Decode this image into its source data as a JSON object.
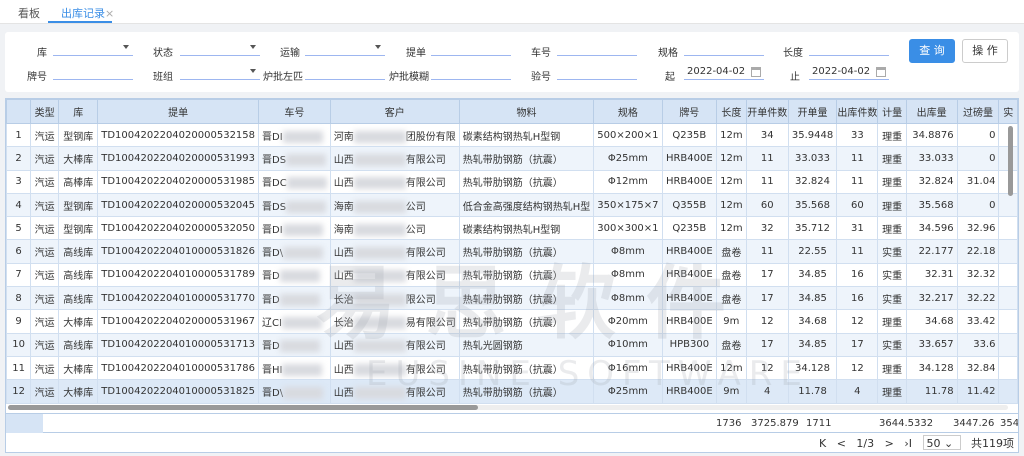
{
  "tabs": [
    {
      "label": "看板"
    },
    {
      "label": "出库记录",
      "close": "×"
    }
  ],
  "filters": {
    "ku": "库",
    "zhuangtai": "状态",
    "yunshu": "运输",
    "tidan": "提单",
    "chehao": "车号",
    "guige": "规格",
    "changdu": "长度",
    "paihao": "牌号",
    "banzu": "班组",
    "lupi_zuopi": "炉批左匹",
    "lupi_mohu": "炉批模糊",
    "yanhao": "验号",
    "qi": "起",
    "qi_value": "2022-04-02",
    "zhi": "止",
    "zhi_value": "2022-04-02"
  },
  "buttons": {
    "query": "查 询",
    "operate": "操 作"
  },
  "accent": "#3a8ee6",
  "columns": [
    "",
    "类型",
    "库",
    "提单",
    "车号",
    "客户",
    "物料",
    "规格",
    "牌号",
    "长度",
    "开单件数",
    "开单量",
    "出库件数",
    "计量",
    "出库量",
    "过磅量",
    "实"
  ],
  "rows": [
    [
      "1",
      "汽运",
      "型钢库",
      "TD1004202204020000532158",
      "晋DI",
      "河南",
      "团股份有限",
      "碳素结构钢热轧H型钢",
      "500×200×1",
      "Q235B",
      "12m",
      "34",
      "35.9448",
      "33",
      "理重",
      "34.8876",
      "0"
    ],
    [
      "2",
      "汽运",
      "大棒库",
      "TD1004202204020000531993",
      "晋DS",
      "山西",
      "有限公司",
      "热轧带肋钢筋（抗震）",
      "Φ25mm",
      "HRB400E",
      "12m",
      "11",
      "33.033",
      "11",
      "理重",
      "33.033",
      "0"
    ],
    [
      "3",
      "汽运",
      "高棒库",
      "TD1004202204020000531985",
      "晋DC",
      "山西",
      "有限公司",
      "热轧带肋钢筋（抗震）",
      "Φ12mm",
      "HRB400E",
      "12m",
      "11",
      "32.824",
      "11",
      "理重",
      "32.824",
      "31.04"
    ],
    [
      "4",
      "汽运",
      "型钢库",
      "TD1004202204020000532045",
      "晋DS",
      "海南",
      "公司",
      "低合金高强度结构钢热轧H型",
      "350×175×7",
      "Q355B",
      "12m",
      "60",
      "35.568",
      "60",
      "理重",
      "35.568",
      "0"
    ],
    [
      "5",
      "汽运",
      "型钢库",
      "TD1004202204020000532050",
      "晋DI",
      "海南",
      "公司",
      "碳素结构钢热轧H型钢",
      "300×300×1",
      "Q235B",
      "12m",
      "32",
      "35.712",
      "31",
      "理重",
      "34.596",
      "32.96"
    ],
    [
      "6",
      "汽运",
      "高线库",
      "TD1004202204010000531826",
      "晋D\\",
      "山西",
      "有限公司",
      "热轧带肋钢筋（抗震）",
      "Φ8mm",
      "HRB400E",
      "盘卷",
      "11",
      "22.55",
      "11",
      "实重",
      "22.177",
      "22.18"
    ],
    [
      "7",
      "汽运",
      "高线库",
      "TD1004202204010000531789",
      "晋D",
      "山西",
      "有限公司",
      "热轧带肋钢筋（抗震）",
      "Φ8mm",
      "HRB400E",
      "盘卷",
      "17",
      "34.85",
      "16",
      "实重",
      "32.31",
      "32.32"
    ],
    [
      "8",
      "汽运",
      "高线库",
      "TD1004202204010000531770",
      "晋D",
      "长治",
      "限公司",
      "热轧带肋钢筋（抗震）",
      "Φ8mm",
      "HRB400E",
      "盘卷",
      "17",
      "34.85",
      "16",
      "实重",
      "32.217",
      "32.22"
    ],
    [
      "9",
      "汽运",
      "大棒库",
      "TD1004202204020000531967",
      "辽CI",
      "长治",
      "易有限公司",
      "热轧带肋钢筋（抗震）",
      "Φ20mm",
      "HRB400E",
      "9m",
      "12",
      "34.68",
      "12",
      "理重",
      "34.68",
      "33.42"
    ],
    [
      "10",
      "汽运",
      "高线库",
      "TD1004202204010000531713",
      "晋D",
      "山西",
      "有限公司",
      "热轧光圆钢筋",
      "Φ10mm",
      "HPB300",
      "盘卷",
      "17",
      "34.85",
      "17",
      "实重",
      "33.657",
      "33.6"
    ],
    [
      "11",
      "汽运",
      "大棒库",
      "TD1004202204010000531786",
      "晋HI",
      "山西",
      "有限公司",
      "热轧带肋钢筋（抗震）",
      "Φ16mm",
      "HRB400E",
      "12m",
      "12",
      "34.128",
      "12",
      "理重",
      "34.128",
      "32.84"
    ],
    [
      "12",
      "汽运",
      "大棒库",
      "TD1004202204010000531825",
      "晋D\\",
      "山西",
      "有限公司",
      "热轧带肋钢筋（抗震）",
      "Φ25mm",
      "HRB400E",
      "9m",
      "4",
      "11.78",
      "4",
      "理重",
      "11.78",
      "11.42"
    ]
  ],
  "totals": {
    "kaidan_jianshu": "1736",
    "kaidan_liang": "3725.879",
    "chuku_jianshu": "1711",
    "chuku_liang": "3644.5332",
    "guobang_liang": "3447.26",
    "shi": "354"
  },
  "pager": {
    "first": "K",
    "prev": "<",
    "page": "1/3",
    "next": ">",
    "last": "›I",
    "page_size": "50",
    "total": "共119项"
  },
  "watermark": {
    "cn": "易思软件",
    "en": "EUSINE SOFTWARE"
  }
}
